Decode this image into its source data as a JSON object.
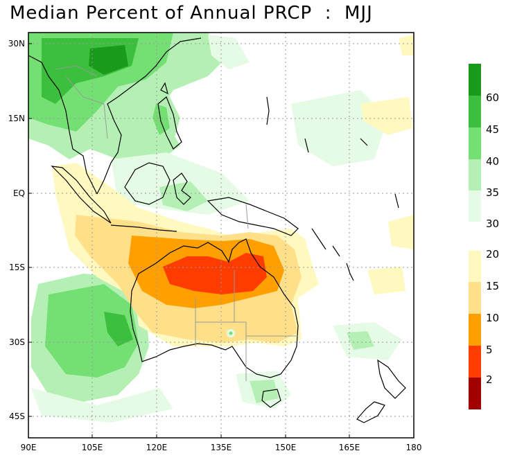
{
  "title": "Median Percent of Annual PRCP  :  MJJ",
  "map": {
    "lon_labels": [
      "90E",
      "105E",
      "120E",
      "135E",
      "150E",
      "165E",
      "180"
    ],
    "lat_labels": [
      "30N",
      "15N",
      "EQ",
      "15S",
      "30S",
      "45S"
    ],
    "lon_range": [
      90,
      180
    ],
    "lat_range": [
      -50,
      33
    ],
    "gridlines": "dotted",
    "ocean_color": "#ffffff",
    "coastline_color": "#000000",
    "border_color": "#999999"
  },
  "colorbar_wet": {
    "labels": [
      "60",
      "45",
      "40",
      "35",
      "30"
    ],
    "colors": [
      "#1a9a1a",
      "#3cbf3c",
      "#74e074",
      "#b4f0b4",
      "#e6fbe6"
    ]
  },
  "colorbar_dry": {
    "labels": [
      "20",
      "15",
      "10",
      "5",
      "2"
    ],
    "colors": [
      "#fff9c0",
      "#ffe08a",
      "#ffa000",
      "#ff3c00",
      "#a00000"
    ]
  }
}
